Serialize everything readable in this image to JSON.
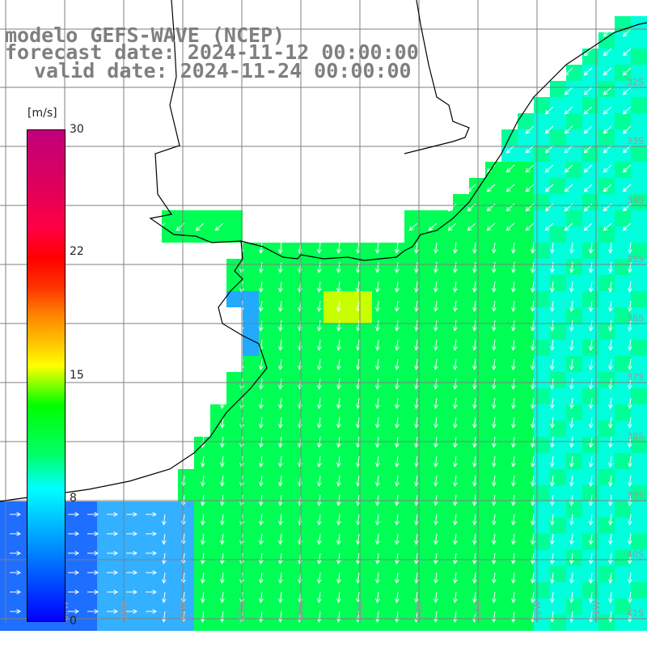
{
  "header": {
    "line1": "modelo GEFS-WAVE (NCEP)",
    "line2": "forecast date: 2024-11-12 00:00:00",
    "line3": "valid date: 2024-11-24 00:00:00"
  },
  "colorbar": {
    "unit": "[m/s]",
    "ticks": [
      "30",
      "22",
      "15",
      "8",
      "0"
    ]
  },
  "lat_labels": [
    "32S",
    "33S",
    "34S",
    "35S",
    "36S",
    "37S",
    "38S",
    "39S",
    "40S",
    "41S"
  ],
  "lon_labels": [
    "60W",
    "59W",
    "58W",
    "57W",
    "56W",
    "55W",
    "54W",
    "53W",
    "52W",
    "51W"
  ],
  "colors": {
    "land": "#ffffff",
    "grid": "#7f7f7f",
    "coast": "#000000",
    "arrow": "#ffffff",
    "title": "#7f7f7f"
  }
}
